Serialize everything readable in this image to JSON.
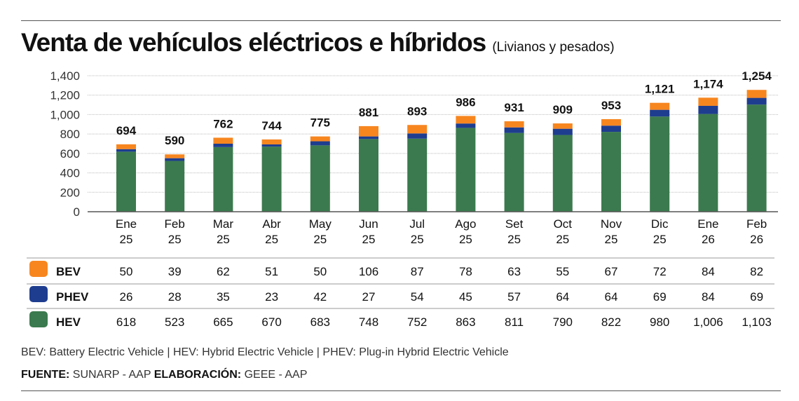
{
  "title": "Venta de vehículos eléctricos e híbridos",
  "subtitle": "(Livianos y pesados)",
  "chart_data": {
    "type": "bar",
    "stacked": true,
    "title": "Venta de vehículos eléctricos e híbridos",
    "subtitle": "(Livianos y pesados)",
    "categories": [
      [
        "Ene",
        "25"
      ],
      [
        "Feb",
        "25"
      ],
      [
        "Mar",
        "25"
      ],
      [
        "Abr",
        "25"
      ],
      [
        "May",
        "25"
      ],
      [
        "Jun",
        "25"
      ],
      [
        "Jul",
        "25"
      ],
      [
        "Ago",
        "25"
      ],
      [
        "Set",
        "25"
      ],
      [
        "Oct",
        "25"
      ],
      [
        "Nov",
        "25"
      ],
      [
        "Dic",
        "25"
      ],
      [
        "Ene",
        "26"
      ],
      [
        "Feb",
        "26"
      ]
    ],
    "series": [
      {
        "name": "HEV",
        "color": "#3b7a4e",
        "values": [
          618,
          523,
          665,
          670,
          683,
          748,
          752,
          863,
          811,
          790,
          822,
          980,
          1006,
          1103
        ],
        "labels": [
          "618",
          "523",
          "665",
          "670",
          "683",
          "748",
          "752",
          "863",
          "811",
          "790",
          "822",
          "980",
          "1,006",
          "1,103"
        ]
      },
      {
        "name": "PHEV",
        "color": "#1e3d8f",
        "values": [
          26,
          28,
          35,
          23,
          42,
          27,
          54,
          45,
          57,
          64,
          64,
          69,
          84,
          69
        ],
        "labels": [
          "26",
          "28",
          "35",
          "23",
          "42",
          "27",
          "54",
          "45",
          "57",
          "64",
          "64",
          "69",
          "84",
          "69"
        ]
      },
      {
        "name": "BEV",
        "color": "#f7861f",
        "values": [
          50,
          39,
          62,
          51,
          50,
          106,
          87,
          78,
          63,
          55,
          67,
          72,
          84,
          82
        ],
        "labels": [
          "50",
          "39",
          "62",
          "51",
          "50",
          "106",
          "87",
          "78",
          "63",
          "55",
          "67",
          "72",
          "84",
          "82"
        ]
      }
    ],
    "totals": [
      "694",
      "590",
      "762",
      "744",
      "775",
      "881",
      "893",
      "986",
      "931",
      "909",
      "953",
      "1,121",
      "1,174",
      "1,254"
    ],
    "ylim": [
      0,
      1400
    ],
    "yticks": [
      "0",
      "200",
      "400",
      "600",
      "800",
      "1,000",
      "1,200",
      "1,400"
    ],
    "grid": true,
    "table_order": [
      "BEV",
      "PHEV",
      "HEV"
    ]
  },
  "footnote": "BEV: Battery Electric Vehicle | HEV: Hybrid Electric Vehicle | PHEV: Plug-in Hybrid Electric Vehicle",
  "source": {
    "label": "FUENTE:",
    "value": "SUNARP - AAP",
    "elab_label": "ELABORACIÓN:",
    "elab_value": "GEEE - AAP"
  }
}
